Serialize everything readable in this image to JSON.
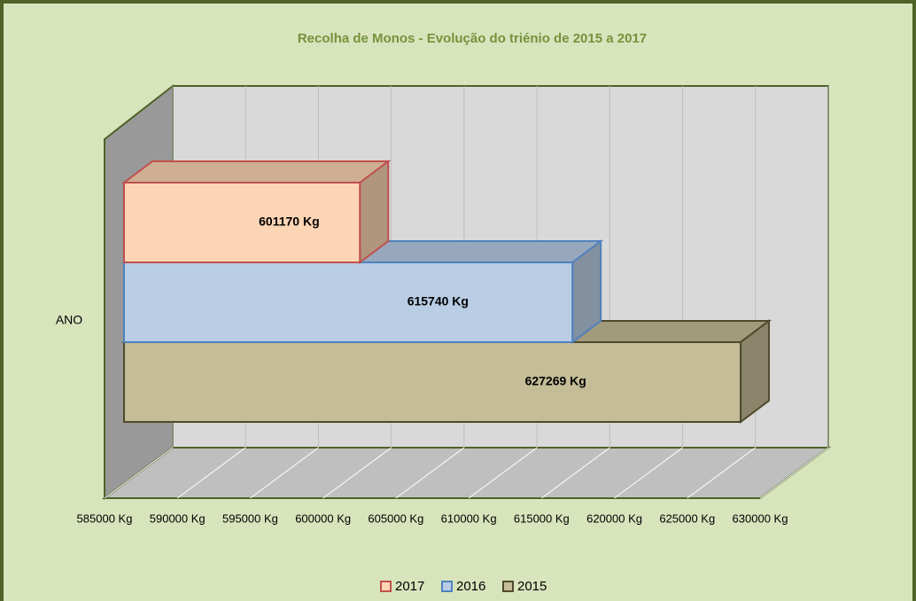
{
  "chart_data": {
    "type": "bar",
    "orientation": "horizontal",
    "title": "Recolha de Monos - Evolução do triénio de 2015 a 2017",
    "categories": [
      "ANO"
    ],
    "series": [
      {
        "name": "2017",
        "color": "#fcd5b5",
        "edge": "#c0504d",
        "values": [
          601170
        ],
        "value_labels": [
          "601170 Kg"
        ]
      },
      {
        "name": "2016",
        "color": "#b9cde5",
        "edge": "#4f81bd",
        "values": [
          615740
        ],
        "value_labels": [
          "615740 Kg"
        ]
      },
      {
        "name": "2015",
        "color": "#c4bd97",
        "edge": "#4f4a2c",
        "values": [
          627269
        ],
        "value_labels": [
          "627269 Kg"
        ]
      }
    ],
    "xlim": [
      585000,
      630000
    ],
    "xticks": [
      {
        "value": 585000,
        "label": "585000 Kg"
      },
      {
        "value": 590000,
        "label": "590000 Kg"
      },
      {
        "value": 595000,
        "label": "595000 Kg"
      },
      {
        "value": 600000,
        "label": "600000 Kg"
      },
      {
        "value": 605000,
        "label": "605000 Kg"
      },
      {
        "value": 610000,
        "label": "610000 Kg"
      },
      {
        "value": 615000,
        "label": "615000 Kg"
      },
      {
        "value": 620000,
        "label": "620000 Kg"
      },
      {
        "value": 625000,
        "label": "625000 Kg"
      },
      {
        "value": 630000,
        "label": "630000 Kg"
      }
    ],
    "grid": true,
    "legend": "bottom"
  }
}
